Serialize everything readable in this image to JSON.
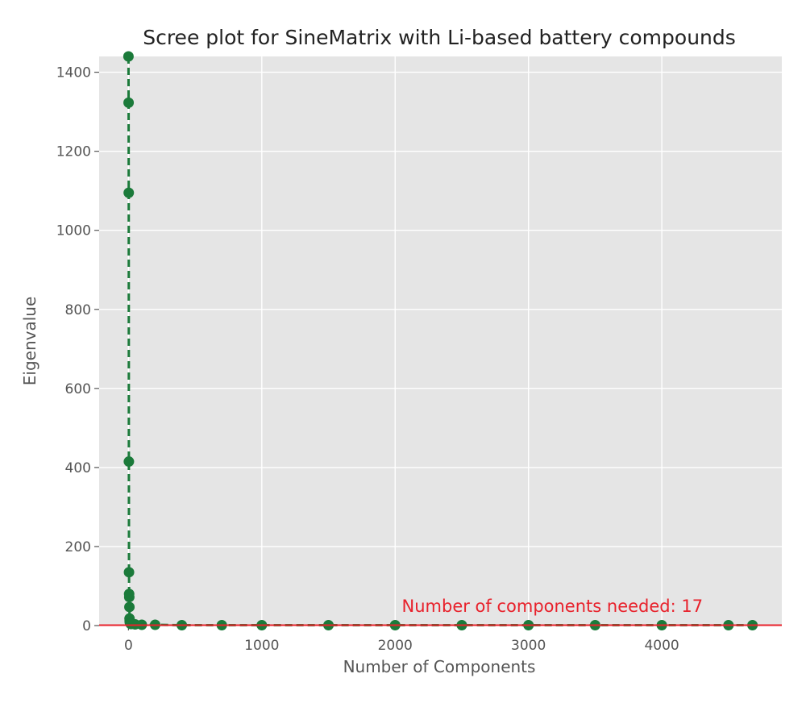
{
  "chart_data": {
    "type": "line",
    "title": "Scree plot for SineMatrix with Li-based battery compounds",
    "xlabel": "Number of Components",
    "ylabel": "Eigenvalue",
    "xlim": [
      -220,
      4900
    ],
    "ylim": [
      0,
      1440
    ],
    "x_ticks": [
      0,
      1000,
      2000,
      3000,
      4000
    ],
    "y_ticks": [
      0,
      200,
      400,
      600,
      800,
      1000,
      1200,
      1400
    ],
    "grid": true,
    "series": [
      {
        "color": "#1b7a3a",
        "line_style": "dashed",
        "marker": "circle",
        "x": [
          0,
          1,
          2,
          3,
          4,
          5,
          6,
          7,
          8,
          9,
          10,
          11,
          12,
          13,
          14,
          15,
          16,
          17,
          18,
          20,
          50,
          100,
          200,
          400,
          700,
          1000,
          1500,
          2000,
          2500,
          3000,
          3500,
          4000,
          4500,
          4680
        ],
        "y": [
          1440,
          1323,
          1095,
          415,
          135,
          80,
          72,
          47,
          18,
          12,
          9,
          8,
          7,
          6,
          6,
          5,
          5,
          5,
          4,
          4,
          3,
          2,
          2,
          1,
          1,
          1,
          1,
          1,
          1,
          1,
          1,
          1,
          1,
          1
        ]
      }
    ],
    "threshold": {
      "y": 1,
      "color": "#e8212b"
    },
    "annotation": {
      "text": "Number of components needed: 17",
      "x": 2050,
      "y": 35,
      "color": "#e8212b"
    }
  }
}
